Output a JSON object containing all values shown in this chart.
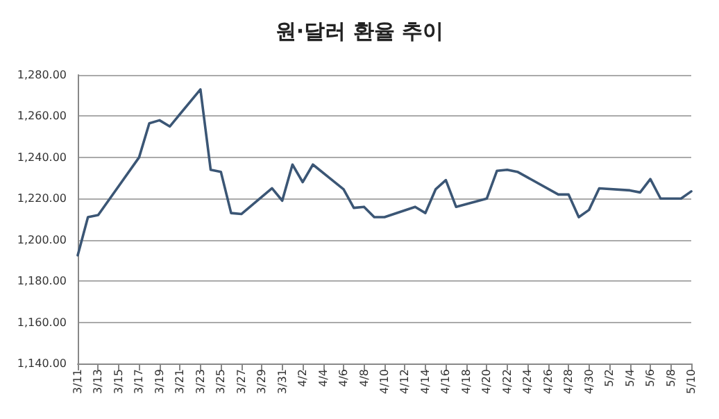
{
  "chart_data": {
    "type": "line",
    "title": "원·달러 환율 추이",
    "x": [
      "--03-11",
      "--03-12",
      "--03-13",
      "--03-17",
      "--03-18",
      "--03-19",
      "--03-20",
      "--03-23",
      "--03-24",
      "--03-25",
      "--03-26",
      "--03-27",
      "--03-30",
      "--03-31",
      "--04-01",
      "--04-02",
      "--04-03",
      "--04-06",
      "--04-07",
      "--04-08",
      "--04-09",
      "--04-10",
      "--04-13",
      "--04-14",
      "--04-15",
      "--04-16",
      "--04-17",
      "--04-20",
      "--04-21",
      "--04-22",
      "--04-23",
      "--04-27",
      "--04-28",
      "--04-29",
      "--04-30",
      "--05-01",
      "--05-04",
      "--05-05",
      "--05-06",
      "--05-07",
      "--05-09",
      "--05-10"
    ],
    "series": [
      {
        "color": "#3b5675",
        "values": [
          1192.5,
          1211,
          1212,
          1240,
          1256.5,
          1258,
          1255,
          1273,
          1234,
          1233,
          1213,
          1212.5,
          1225,
          1219,
          1236.5,
          1228,
          1236.5,
          1224.5,
          1215.5,
          1216,
          1211,
          1211,
          1216,
          1213,
          1224.5,
          1229,
          1216,
          1220,
          1233.5,
          1234,
          1233,
          1222,
          1222,
          1211,
          1214.5,
          1225,
          1224,
          1223,
          1229.5,
          1220,
          1220,
          1223.5
        ]
      }
    ],
    "xlim": [
      "--03-11",
      "--05-10"
    ],
    "xticks": [
      {
        "value": "--03-11",
        "label": "3/11"
      },
      {
        "value": "--03-13",
        "label": "3/13"
      },
      {
        "value": "--03-15",
        "label": "3/15"
      },
      {
        "value": "--03-17",
        "label": "3/17"
      },
      {
        "value": "--03-19",
        "label": "3/19"
      },
      {
        "value": "--03-21",
        "label": "3/21"
      },
      {
        "value": "--03-23",
        "label": "3/23"
      },
      {
        "value": "--03-25",
        "label": "3/25"
      },
      {
        "value": "--03-27",
        "label": "3/27"
      },
      {
        "value": "--03-29",
        "label": "3/29"
      },
      {
        "value": "--03-31",
        "label": "3/31"
      },
      {
        "value": "--04-02",
        "label": "4/2"
      },
      {
        "value": "--04-04",
        "label": "4/4"
      },
      {
        "value": "--04-06",
        "label": "4/6"
      },
      {
        "value": "--04-08",
        "label": "4/8"
      },
      {
        "value": "--04-10",
        "label": "4/10"
      },
      {
        "value": "--04-12",
        "label": "4/12"
      },
      {
        "value": "--04-14",
        "label": "4/14"
      },
      {
        "value": "--04-16",
        "label": "4/16"
      },
      {
        "value": "--04-18",
        "label": "4/18"
      },
      {
        "value": "--04-20",
        "label": "4/20"
      },
      {
        "value": "--04-22",
        "label": "4/22"
      },
      {
        "value": "--04-24",
        "label": "4/24"
      },
      {
        "value": "--04-26",
        "label": "4/26"
      },
      {
        "value": "--04-28",
        "label": "4/28"
      },
      {
        "value": "--04-30",
        "label": "4/30"
      },
      {
        "value": "--05-02",
        "label": "5/2"
      },
      {
        "value": "--05-04",
        "label": "5/4"
      },
      {
        "value": "--05-06",
        "label": "5/6"
      },
      {
        "value": "--05-08",
        "label": "5/8"
      },
      {
        "value": "--05-10",
        "label": "5/10"
      }
    ],
    "ylim": [
      1140,
      1280
    ],
    "yticks": [
      {
        "value": 1140,
        "label": "1,140.00"
      },
      {
        "value": 1160,
        "label": "1,160.00"
      },
      {
        "value": 1180,
        "label": "1,180.00"
      },
      {
        "value": 1200,
        "label": "1,200.00"
      },
      {
        "value": 1220,
        "label": "1,220.00"
      },
      {
        "value": 1240,
        "label": "1,240.00"
      },
      {
        "value": 1260,
        "label": "1,260.00"
      },
      {
        "value": 1280,
        "label": "1,280.00"
      }
    ],
    "grid": "y",
    "marker": "none",
    "line_style": "solid"
  }
}
